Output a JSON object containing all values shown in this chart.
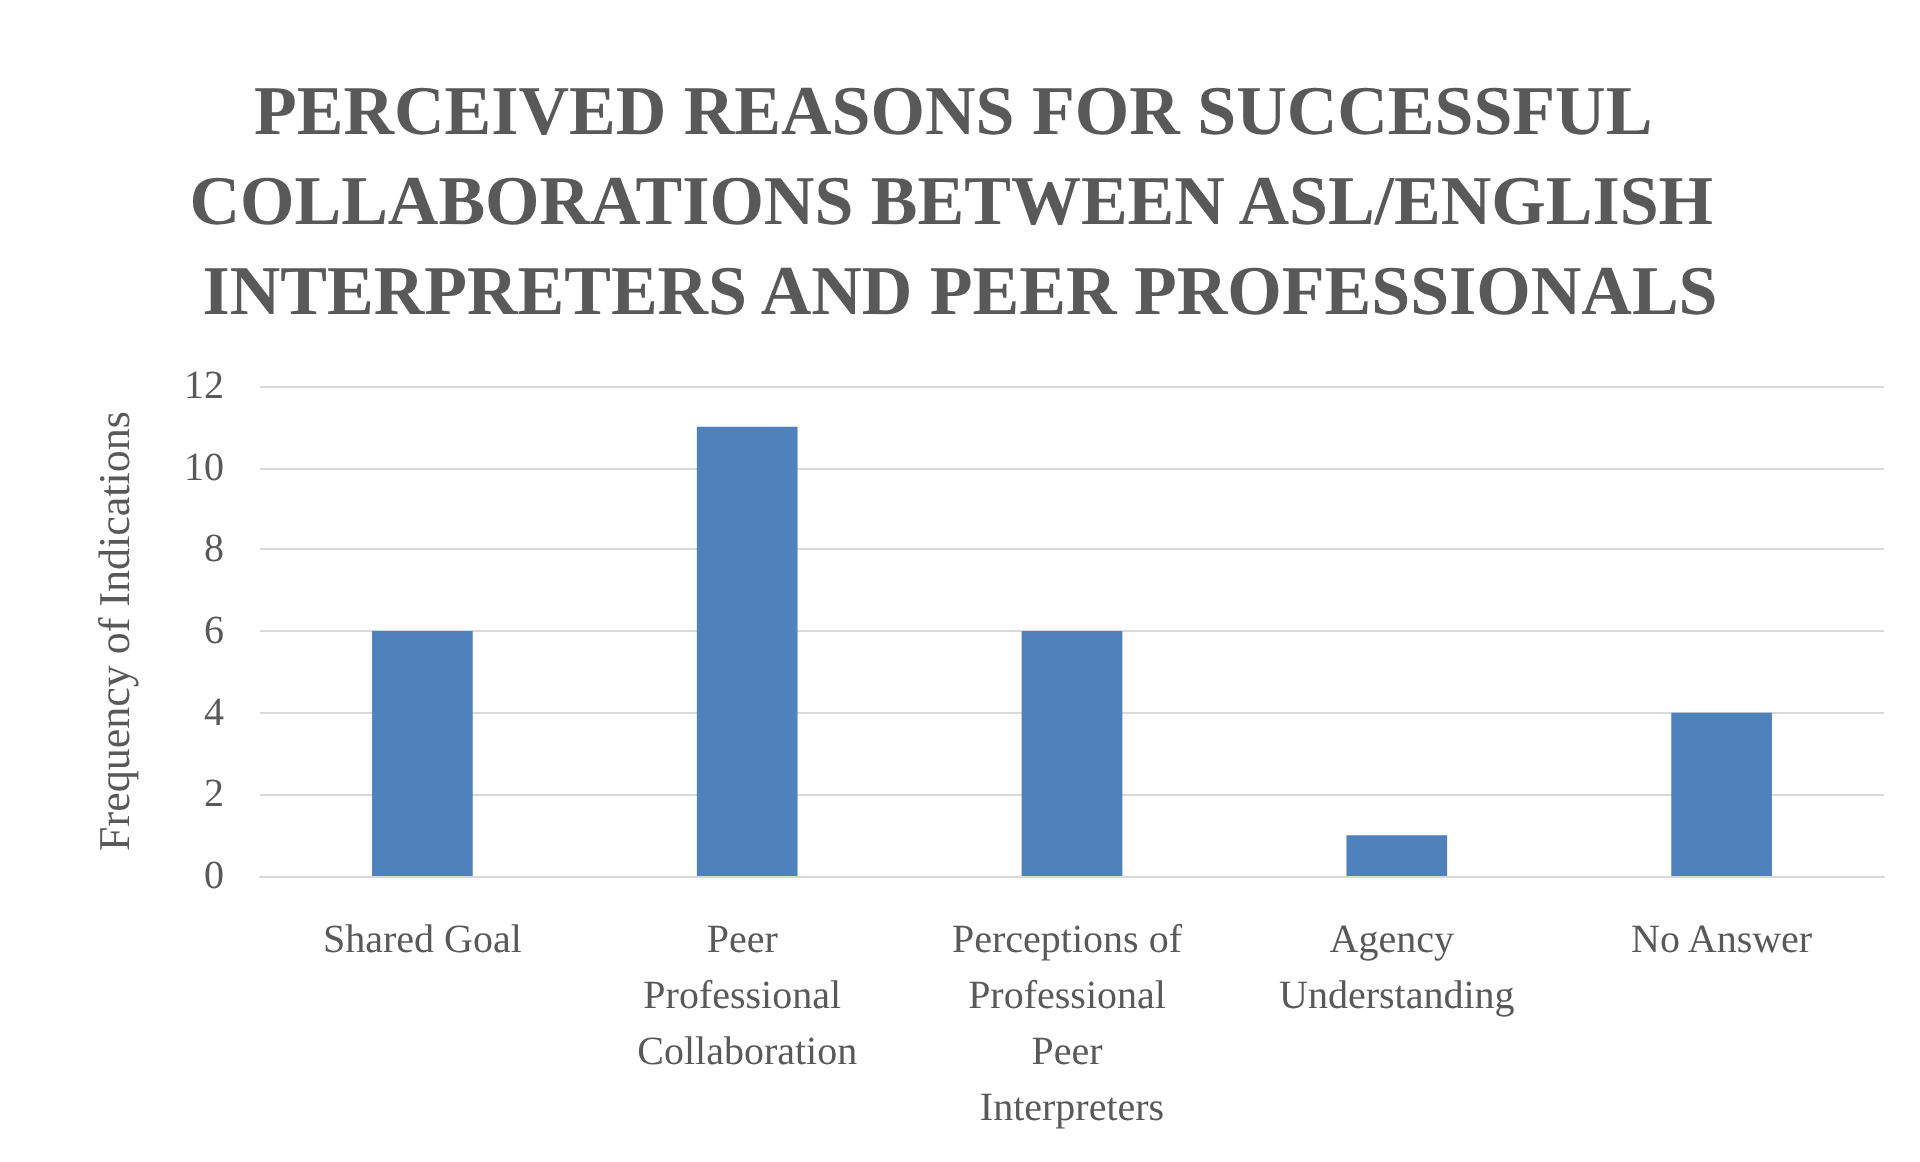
{
  "chart_data": {
    "type": "bar",
    "title": "PERCEIVED REASONS FOR SUCCESSFUL COLLABORATIONS BETWEEN ASL/ENGLISH INTERPRETERS AND PEER PROFESSIONALS",
    "ylabel": "Frequency of Indications",
    "categories": [
      "Shared Goal",
      "Peer Professional Collaboration",
      "Perceptions of Professional Peer Interpreters",
      "Agency Understanding",
      "No Answer"
    ],
    "values": [
      6,
      11,
      6,
      1,
      4
    ],
    "color": "#4f81bd",
    "ylim": [
      0,
      12
    ],
    "yticks": [
      0,
      2,
      4,
      6,
      8,
      10,
      12
    ],
    "grid": "y"
  }
}
